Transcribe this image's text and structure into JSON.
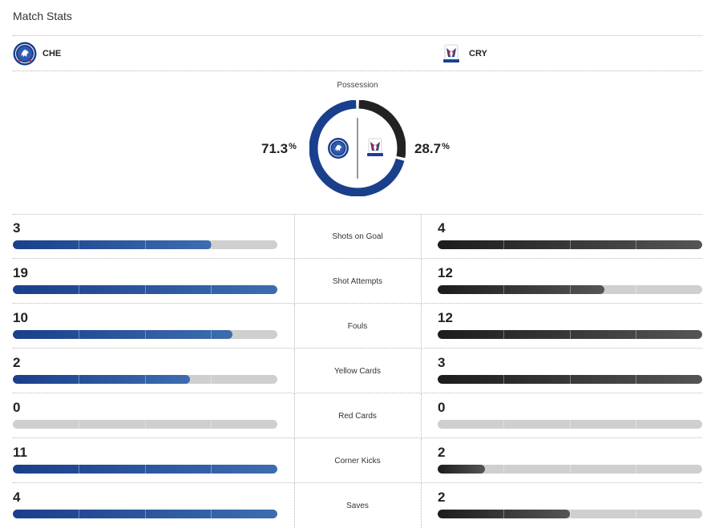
{
  "title": "Match Stats",
  "home": {
    "abbr": "CHE",
    "crest": "chelsea-crest-icon",
    "color": "#1a3f8c",
    "possession": "71.3",
    "possession_fraction": 0.713
  },
  "away": {
    "abbr": "CRY",
    "crest": "crystal-palace-crest-icon",
    "color": "#222222",
    "possession": "28.7",
    "possession_fraction": 0.287
  },
  "possession_label": "Possession",
  "pct_symbol": "%",
  "stats": [
    {
      "label": "Shots on Goal",
      "home": "3",
      "away": "4",
      "home_fraction": 0.75,
      "away_fraction": 1.0
    },
    {
      "label": "Shot Attempts",
      "home": "19",
      "away": "12",
      "home_fraction": 1.0,
      "away_fraction": 0.63
    },
    {
      "label": "Fouls",
      "home": "10",
      "away": "12",
      "home_fraction": 0.83,
      "away_fraction": 1.0
    },
    {
      "label": "Yellow Cards",
      "home": "2",
      "away": "3",
      "home_fraction": 0.67,
      "away_fraction": 1.0
    },
    {
      "label": "Red Cards",
      "home": "0",
      "away": "0",
      "home_fraction": 0.0,
      "away_fraction": 0.0
    },
    {
      "label": "Corner Kicks",
      "home": "11",
      "away": "2",
      "home_fraction": 1.0,
      "away_fraction": 0.18
    },
    {
      "label": "Saves",
      "home": "4",
      "away": "2",
      "home_fraction": 1.0,
      "away_fraction": 0.5
    }
  ]
}
